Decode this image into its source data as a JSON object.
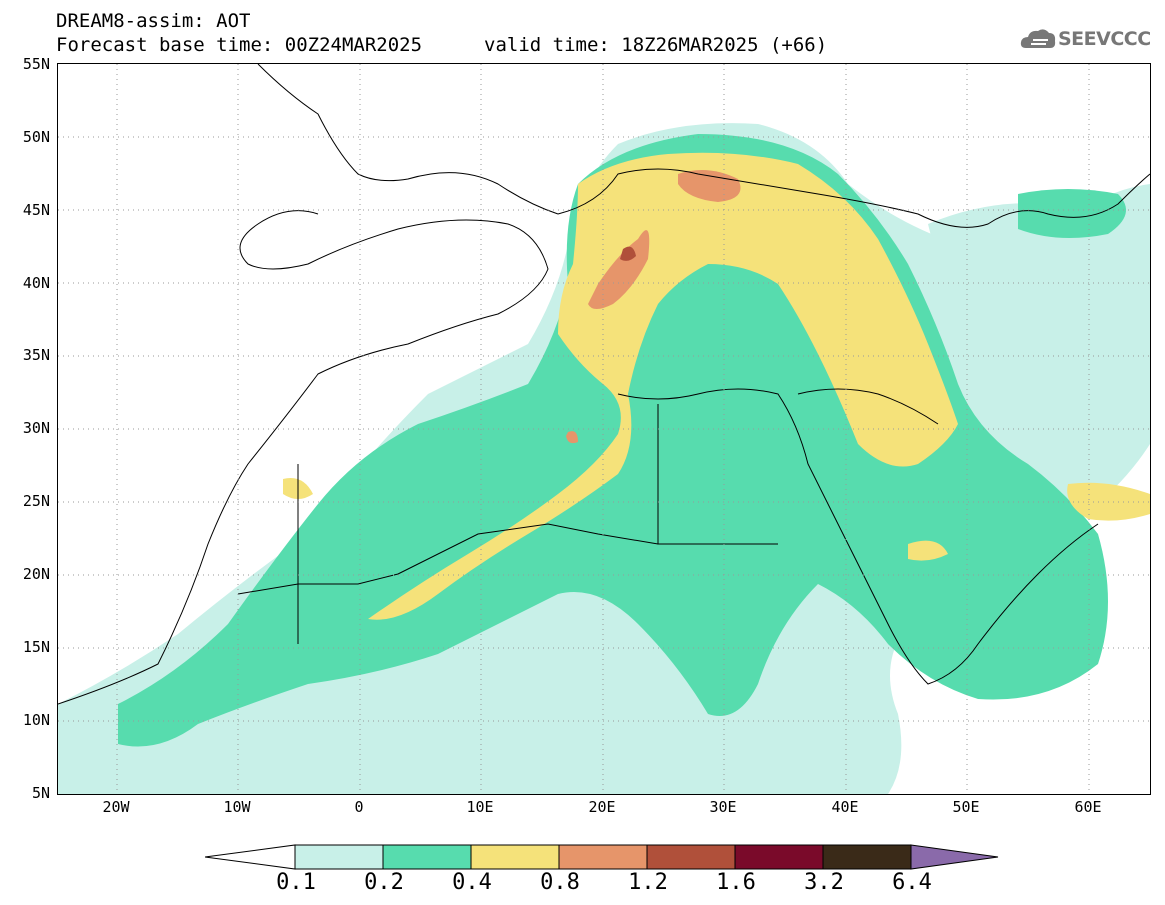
{
  "header": {
    "line1": "DREAM8-assim: AOT",
    "line2": "Forecast base time: 00Z24MAR2025",
    "line3": "valid time: 18Z26MAR2025 (+66)"
  },
  "logo": {
    "text": "SEEVCCC",
    "icon": "cloud-icon"
  },
  "axes": {
    "lat_labels": [
      "55N",
      "50N",
      "45N",
      "40N",
      "35N",
      "30N",
      "25N",
      "20N",
      "15N",
      "10N",
      "5N"
    ],
    "lon_labels": [
      "20W",
      "10W",
      "0",
      "10E",
      "20E",
      "30E",
      "40E",
      "50E",
      "60E"
    ]
  },
  "colorbar": {
    "labels": [
      "0.1",
      "0.2",
      "0.4",
      "0.8",
      "1.2",
      "1.6",
      "3.2",
      "6.4"
    ],
    "colors": [
      "#ffffff",
      "#c8f0e8",
      "#57dcae",
      "#f5e27a",
      "#e6956a",
      "#b0503a",
      "#7a0a2a",
      "#3a2a18",
      "#8a6aaa"
    ]
  },
  "palette": {
    "light": "#c8f0e8",
    "green": "#57dcae",
    "yellow": "#f5e27a",
    "orange": "#e6956a",
    "red": "#b0503a"
  }
}
